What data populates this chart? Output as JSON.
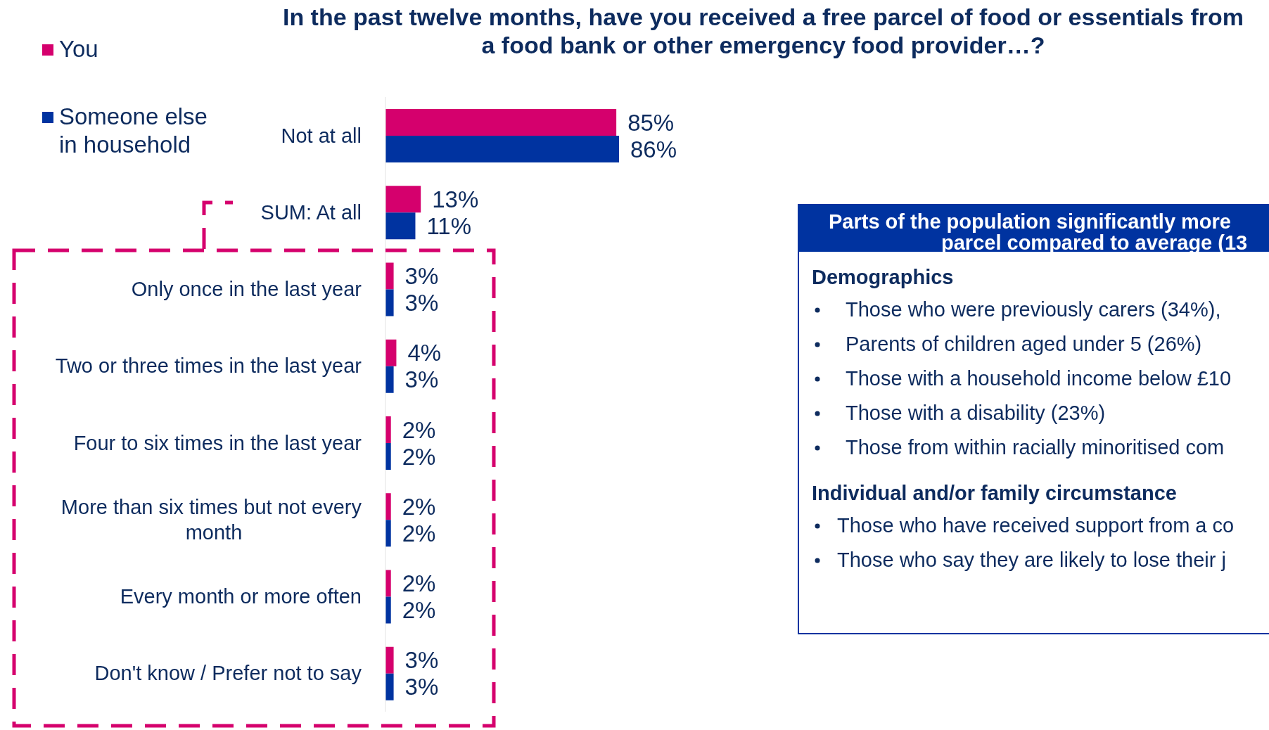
{
  "chart_data": [
    {
      "type": "bar",
      "orientation": "horizontal",
      "title": "In the past twelve months, have you received a free parcel of food or essentials from a food bank or other emergency food provider…?",
      "categories": [
        "Not at all",
        "SUM: At all",
        "Only once in the last year",
        "Two or three times in the last year",
        "Four to six times in the last year",
        "More than six times but not every month",
        "Every month or more often",
        "Don't know / Prefer not to say"
      ],
      "series": [
        {
          "name": "You",
          "color": "#d5006d",
          "values": [
            85,
            13,
            3,
            4,
            2,
            2,
            2,
            3
          ],
          "value_labels": [
            "85%",
            "13%",
            "3%",
            "4%",
            "2%",
            "2%",
            "2%",
            "3%"
          ]
        },
        {
          "name": "Someone else in household",
          "color": "#0033a0",
          "values": [
            86,
            11,
            3,
            3,
            2,
            2,
            2,
            3
          ],
          "value_labels": [
            "86%",
            "11%",
            "3%",
            "3%",
            "2%",
            "2%",
            "2%",
            "3%"
          ]
        }
      ],
      "legend": "top left"
    },
    {
      "type": "other",
      "title": "Parts of the population significantly more parcel compared to average (13",
      "annotations": [
        "Demographics",
        "Those who were previously carers (34%),",
        "Parents of children aged under 5 (26%)",
        "Those with a household income below £10",
        "Those with a disability (23%)",
        "Those from within racially minoritised com",
        "Individual and/or family circumstance",
        "Those who have received support from a co",
        "Those who say they are likely to lose their j"
      ]
    }
  ]
}
